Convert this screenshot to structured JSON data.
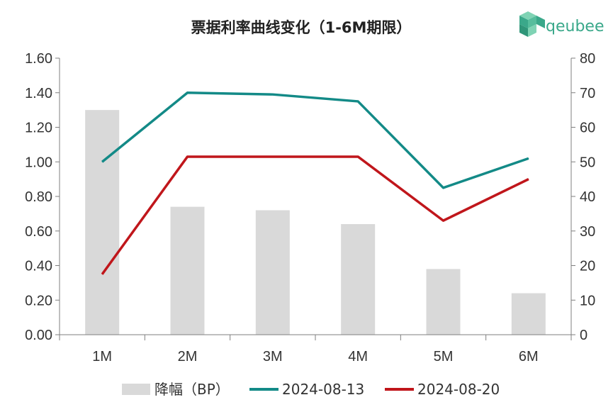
{
  "brand": {
    "logo_text": "qeubee",
    "logo_color": "#3aa88a"
  },
  "chart_data": {
    "type": "bar+line",
    "title": "票据利率曲线变化（1-6M期限）",
    "categories": [
      "1M",
      "2M",
      "3M",
      "4M",
      "5M",
      "6M"
    ],
    "bar_series": {
      "name": "降幅（BP）",
      "axis": "right",
      "color": "#d9d9d9",
      "values": [
        65,
        37,
        36,
        32,
        19,
        12
      ]
    },
    "line_series": [
      {
        "name": "2024-08-13",
        "axis": "left",
        "color": "#138a87",
        "values": [
          1.0,
          1.4,
          1.39,
          1.35,
          0.85,
          1.02
        ]
      },
      {
        "name": "2024-08-20",
        "axis": "left",
        "color": "#c0161b",
        "values": [
          0.35,
          1.03,
          1.03,
          1.03,
          0.66,
          0.9
        ]
      }
    ],
    "y_left": {
      "min": 0,
      "max": 1.6,
      "step": 0.2,
      "ticks": [
        "0.00",
        "0.20",
        "0.40",
        "0.60",
        "0.80",
        "1.00",
        "1.20",
        "1.40",
        "1.60"
      ]
    },
    "y_right": {
      "min": 0,
      "max": 80,
      "step": 10,
      "ticks": [
        "0",
        "10",
        "20",
        "30",
        "40",
        "50",
        "60",
        "70",
        "80"
      ]
    },
    "grid": false,
    "legend_position": "bottom"
  }
}
